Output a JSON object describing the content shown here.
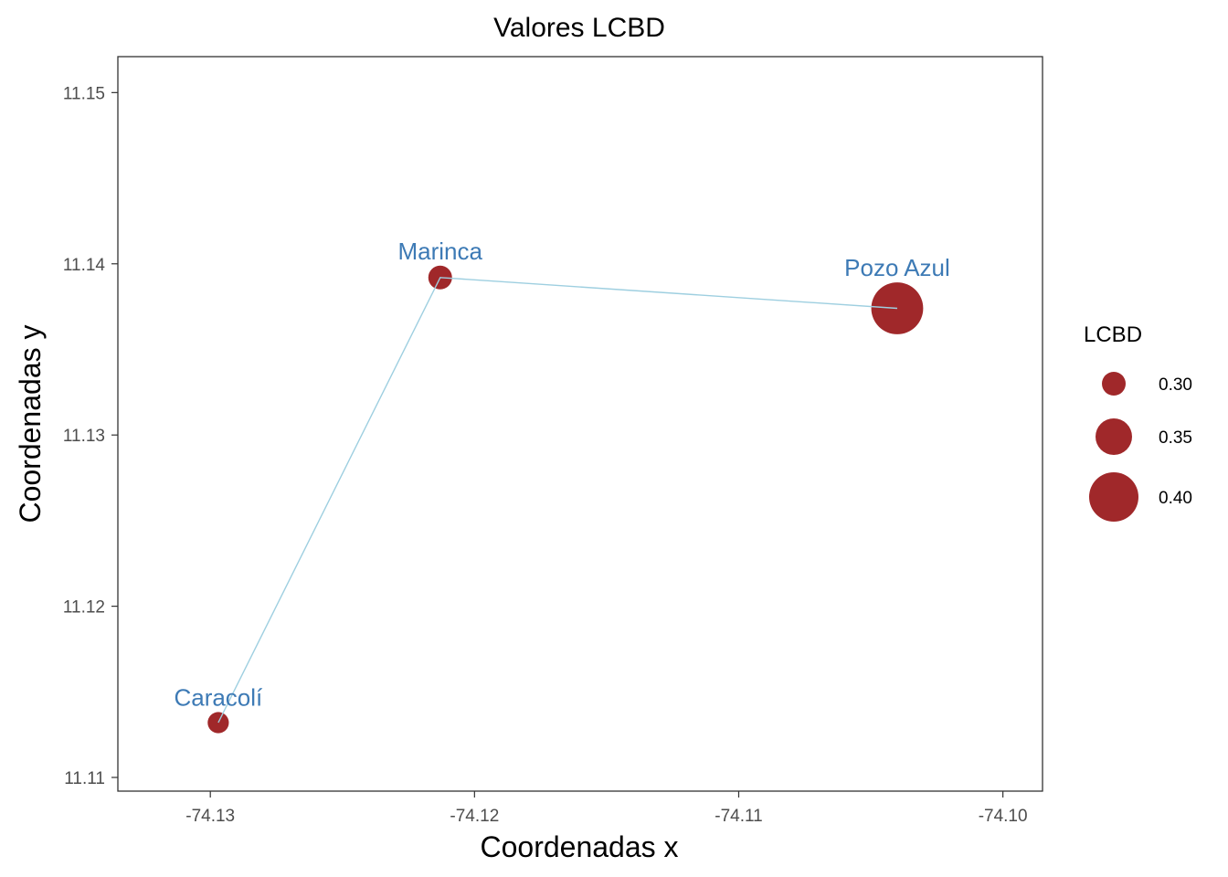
{
  "chart_data": {
    "type": "scatter",
    "title": "Valores LCBD",
    "xlabel": "Coordenadas x",
    "ylabel": "Coordenadas y",
    "xlim": [
      -74.1335,
      -74.0985
    ],
    "ylim": [
      11.1092,
      11.1521
    ],
    "xticks": [
      {
        "value": -74.13,
        "label": "-74.13"
      },
      {
        "value": -74.12,
        "label": "-74.12"
      },
      {
        "value": -74.11,
        "label": "-74.11"
      },
      {
        "value": -74.1,
        "label": "-74.10"
      }
    ],
    "yticks": [
      {
        "value": 11.11,
        "label": "11.11"
      },
      {
        "value": 11.12,
        "label": "11.12"
      },
      {
        "value": 11.13,
        "label": "11.13"
      },
      {
        "value": 11.14,
        "label": "11.14"
      },
      {
        "value": 11.15,
        "label": "11.15"
      }
    ],
    "points": [
      {
        "name": "Caracolí",
        "x": -74.1297,
        "y": 11.1132,
        "lcbd": 0.29
      },
      {
        "name": "Marinca",
        "x": -74.1213,
        "y": 11.1392,
        "lcbd": 0.3
      },
      {
        "name": "Pozo Azul",
        "x": -74.104,
        "y": 11.1374,
        "lcbd": 0.41
      }
    ],
    "path_order": [
      "Caracolí",
      "Marinca",
      "Pozo Azul"
    ],
    "legend": {
      "title": "LCBD",
      "placement": "right",
      "entries": [
        {
          "value": 0.3,
          "label": "0.30"
        },
        {
          "value": 0.35,
          "label": "0.35"
        },
        {
          "value": 0.4,
          "label": "0.40"
        }
      ]
    },
    "grid": false,
    "colors": {
      "point": "#a0282a",
      "line": "#9ecfe0",
      "label": "#3d7ab5"
    }
  }
}
